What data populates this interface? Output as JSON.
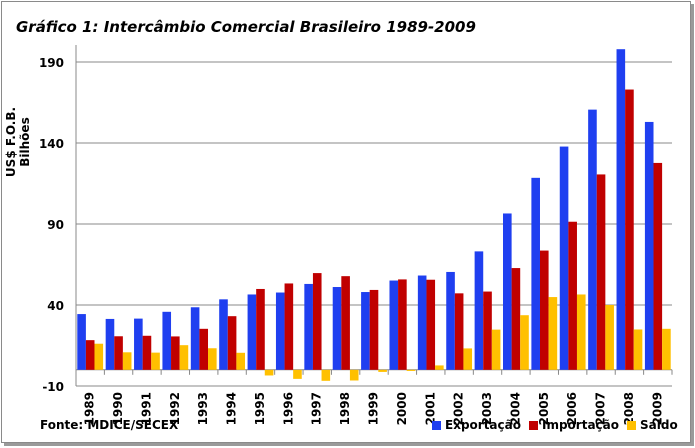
{
  "chart_data": {
    "type": "bar",
    "title": "Gráfico 1: Intercâmbio Comercial Brasileiro  1989-2009",
    "ylabel": "US$ F.O.B. Bilhões",
    "xlabel": "",
    "source": "Fonte: MDICE/SECEX",
    "ylim": [
      -10,
      200
    ],
    "yticks": [
      -10,
      40,
      90,
      140,
      190
    ],
    "grid": true,
    "legend_position": "bottom-right",
    "categories": [
      "1989",
      "1990",
      "1991",
      "1992",
      "1993",
      "1994",
      "1995",
      "1996",
      "1997",
      "1998",
      "1999",
      "2000",
      "2001",
      "2002",
      "2003",
      "2004",
      "2005",
      "2006",
      "2007",
      "2008",
      "2009"
    ],
    "series": [
      {
        "name": "Exportação",
        "color": "#1f3ff0",
        "values": [
          34.4,
          31.4,
          31.6,
          35.8,
          38.6,
          43.5,
          46.5,
          47.7,
          53.0,
          51.1,
          48.0,
          55.1,
          58.2,
          60.4,
          73.1,
          96.5,
          118.5,
          137.8,
          160.6,
          197.9,
          153.0
        ]
      },
      {
        "name": "Importação",
        "color": "#c00000",
        "values": [
          18.3,
          20.7,
          21.0,
          20.6,
          25.3,
          33.1,
          49.9,
          53.3,
          59.7,
          57.8,
          49.3,
          55.8,
          55.6,
          47.2,
          48.3,
          62.8,
          73.6,
          91.4,
          120.6,
          173.0,
          127.7
        ]
      },
      {
        "name": "Saldo",
        "color": "#ffc000",
        "values": [
          16.1,
          10.8,
          10.6,
          15.2,
          13.3,
          10.5,
          -3.5,
          -5.6,
          -6.8,
          -6.6,
          -1.3,
          -0.7,
          2.7,
          13.2,
          24.8,
          33.7,
          44.9,
          46.5,
          40.0,
          24.9,
          25.3
        ]
      }
    ]
  }
}
